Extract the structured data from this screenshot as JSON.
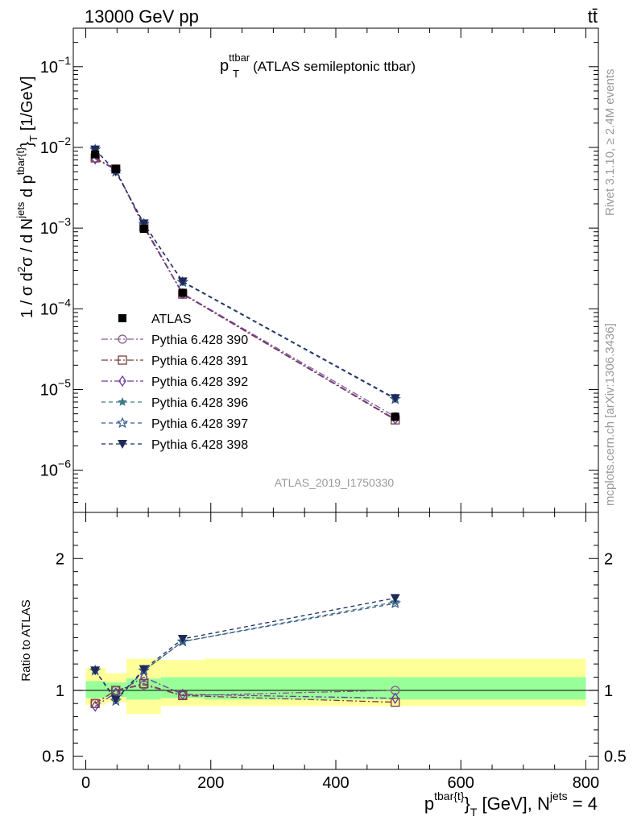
{
  "header": {
    "energy_label": "13000 GeV pp",
    "process_label": "tt̄"
  },
  "side_labels": {
    "rivet": "Rivet 3.1.10, ≥ 2.4M events",
    "source": "mcplots.cern.ch [arXiv:1306.3436]"
  },
  "chart_data": [
    {
      "type": "scatter",
      "title_main": "p",
      "title_sup": "ttbar",
      "title_sub": "T",
      "title_rest": "(ATLAS semileptonic ttbar)",
      "analysis_label": "ATLAS_2019_I1750330",
      "ylabel": "1 / σ d²σ / d N^jets d p^tbar{t}_T [1/GeV]",
      "yscale": "log",
      "ylim": [
        3e-07,
        0.3
      ],
      "xlim": [
        -20,
        820
      ],
      "y_ticks": [
        {
          "value": 0.1,
          "base": "10",
          "exp": "−1"
        },
        {
          "value": 0.01,
          "base": "10",
          "exp": "−2"
        },
        {
          "value": 0.001,
          "base": "10",
          "exp": "−3"
        },
        {
          "value": 0.0001,
          "base": "10",
          "exp": "−4"
        },
        {
          "value": 1e-05,
          "base": "10",
          "exp": "−5"
        },
        {
          "value": 1e-06,
          "base": "10",
          "exp": "−6"
        }
      ],
      "legend_position": "left-middle",
      "x": [
        15,
        48,
        93,
        155,
        495
      ],
      "series": [
        {
          "name": "ATLAS",
          "marker": "square-filled",
          "color": "#000000",
          "dash": "none",
          "values": [
            0.0082,
            0.0054,
            0.00098,
            0.000158,
            4.6e-06
          ]
        },
        {
          "name": "Pythia 6.428 390",
          "marker": "circle-open",
          "color": "#8a5a8a",
          "dash": "8,3,2,3",
          "values": [
            0.0074,
            0.0053,
            0.00102,
            0.000155,
            4.6e-06
          ]
        },
        {
          "name": "Pythia 6.428 391",
          "marker": "square-open",
          "color": "#7a3b3b",
          "dash": "8,3,2,3",
          "values": [
            0.0074,
            0.0054,
            0.00103,
            0.000152,
            4.2e-06
          ]
        },
        {
          "name": "Pythia 6.428 392",
          "marker": "diamond-open",
          "color": "#6a3a9a",
          "dash": "8,3,2,3",
          "values": [
            0.0072,
            0.0053,
            0.00108,
            0.000154,
            4.3e-06
          ]
        },
        {
          "name": "Pythia 6.428 396",
          "marker": "star-filled",
          "color": "#3c7a84",
          "dash": "5,4",
          "values": [
            0.0094,
            0.0051,
            0.00113,
            0.000216,
            7.7e-06
          ]
        },
        {
          "name": "Pythia 6.428 397",
          "marker": "star-open",
          "color": "#3a5a8a",
          "dash": "5,4",
          "values": [
            0.0094,
            0.005,
            0.00113,
            0.000214,
            7.6e-06
          ]
        },
        {
          "name": "Pythia 6.428 398",
          "marker": "triangle-down-filled",
          "color": "#1e2a5a",
          "dash": "5,4",
          "values": [
            0.0094,
            0.005,
            0.00114,
            0.000218,
            7.8e-06
          ]
        }
      ]
    },
    {
      "type": "scatter",
      "ylabel": "Ratio to ATLAS",
      "xlabel": "p^tbar{t}_T [GeV], N^jets = 4",
      "xlim": [
        -20,
        820
      ],
      "ylim": [
        0.4,
        2.35
      ],
      "y_ticks": [
        {
          "value": 2,
          "label": "2"
        },
        {
          "value": 1,
          "label": "1"
        },
        {
          "value": 0.5,
          "label": "0.5"
        }
      ],
      "x_ticks": [
        {
          "value": 0,
          "label": "0"
        },
        {
          "value": 200,
          "label": "200"
        },
        {
          "value": 400,
          "label": "400"
        },
        {
          "value": 600,
          "label": "600"
        },
        {
          "value": 800,
          "label": "800"
        }
      ],
      "reference_line": 1,
      "bands": [
        {
          "x0": 0,
          "x1": 32,
          "stat": [
            0.94,
            1.07
          ],
          "total": [
            0.89,
            1.17
          ]
        },
        {
          "x0": 32,
          "x1": 65,
          "stat": [
            0.95,
            1.06
          ],
          "total": [
            0.91,
            1.13
          ]
        },
        {
          "x0": 65,
          "x1": 120,
          "stat": [
            0.93,
            1.09
          ],
          "total": [
            0.82,
            1.24
          ]
        },
        {
          "x0": 120,
          "x1": 190,
          "stat": [
            0.94,
            1.1
          ],
          "total": [
            0.88,
            1.23
          ]
        },
        {
          "x0": 190,
          "x1": 800,
          "stat": [
            0.93,
            1.1
          ],
          "total": [
            0.88,
            1.24
          ]
        }
      ],
      "x": [
        15,
        48,
        93,
        155,
        495
      ],
      "series": [
        {
          "name": "Pythia 6.428 390",
          "values": [
            0.9,
            1.0,
            1.04,
            0.96,
            1.0
          ]
        },
        {
          "name": "Pythia 6.428 391",
          "values": [
            0.9,
            1.0,
            1.05,
            0.96,
            0.91
          ]
        },
        {
          "name": "Pythia 6.428 392",
          "values": [
            0.88,
            0.98,
            1.1,
            0.97,
            0.94
          ]
        },
        {
          "name": "Pythia 6.428 396",
          "values": [
            1.15,
            0.93,
            1.15,
            1.37,
            1.67
          ]
        },
        {
          "name": "Pythia 6.428 397",
          "values": [
            1.15,
            0.92,
            1.15,
            1.37,
            1.66
          ]
        },
        {
          "name": "Pythia 6.428 398",
          "values": [
            1.15,
            0.93,
            1.16,
            1.39,
            1.7
          ]
        }
      ]
    }
  ],
  "colors": {
    "band_total": "#ffff99",
    "band_stat": "#99ff99",
    "side_text": "#999999",
    "analysis_text": "#999999"
  }
}
